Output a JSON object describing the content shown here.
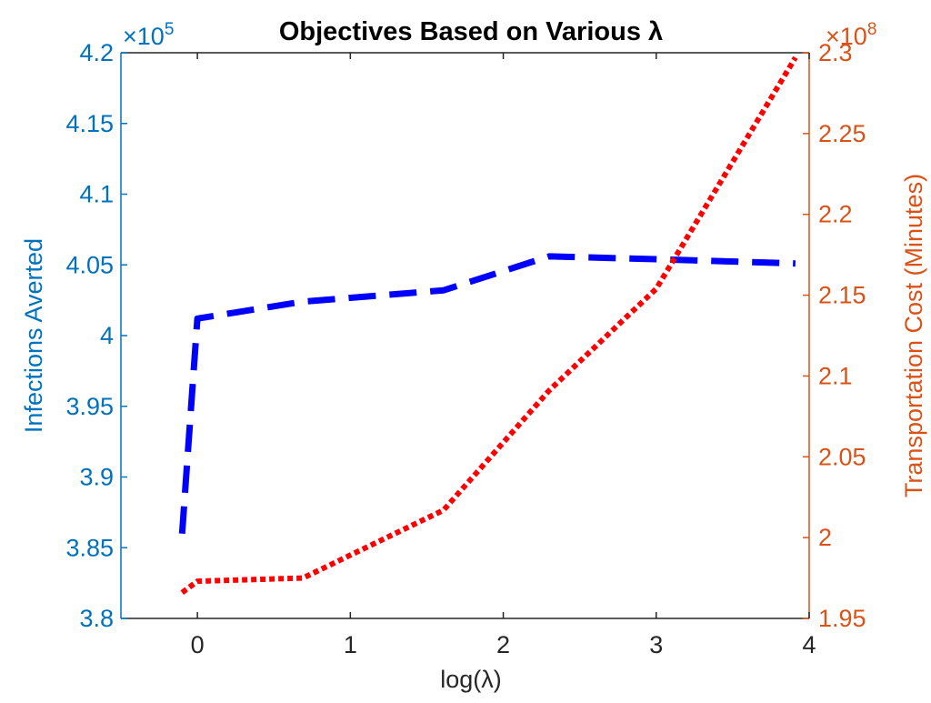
{
  "chart_data": {
    "type": "line",
    "title": "Objectives Based on Various λ",
    "xlabel": "log(λ)",
    "xlim": [
      -0.5,
      4
    ],
    "x_ticks": [
      0,
      1,
      2,
      3,
      4
    ],
    "x_tick_labels": [
      "0",
      "1",
      "2",
      "3",
      "4"
    ],
    "grid": false,
    "legend": "none",
    "y_left": {
      "label": "Infections Averted",
      "multiplier": "×10",
      "exponent": "5",
      "lim": [
        3.8,
        4.2
      ],
      "ticks": [
        3.8,
        3.85,
        3.9,
        3.95,
        4,
        4.05,
        4.1,
        4.15,
        4.2
      ],
      "tick_labels": [
        "3.8",
        "3.85",
        "3.9",
        "3.95",
        "4",
        "4.05",
        "4.1",
        "4.15",
        "4.2"
      ],
      "color": "#0072BD"
    },
    "y_right": {
      "label": "Transportation Cost (Minutes)",
      "multiplier": "×10",
      "exponent": "8",
      "lim": [
        1.95,
        2.3
      ],
      "ticks": [
        1.95,
        2,
        2.05,
        2.1,
        2.15,
        2.2,
        2.25,
        2.3
      ],
      "tick_labels": [
        "1.95",
        "2",
        "2.05",
        "2.1",
        "2.15",
        "2.2",
        "2.25",
        "2.3"
      ],
      "color": "#D95319"
    },
    "series": [
      {
        "axis": "left",
        "style": "dashed",
        "color": "#0000FF",
        "x": [
          -0.1,
          0,
          0.69,
          1.61,
          2.3,
          3.0,
          3.91
        ],
        "y": [
          3.86,
          4.012,
          4.024,
          4.032,
          4.056,
          4.054,
          4.051
        ]
      },
      {
        "axis": "right",
        "style": "dotted",
        "color": "#FF0000",
        "x": [
          -0.1,
          0,
          0.69,
          1.61,
          2.3,
          3.0,
          3.91
        ],
        "y": [
          1.966,
          1.973,
          1.975,
          2.017,
          2.091,
          2.154,
          2.297
        ]
      }
    ]
  }
}
